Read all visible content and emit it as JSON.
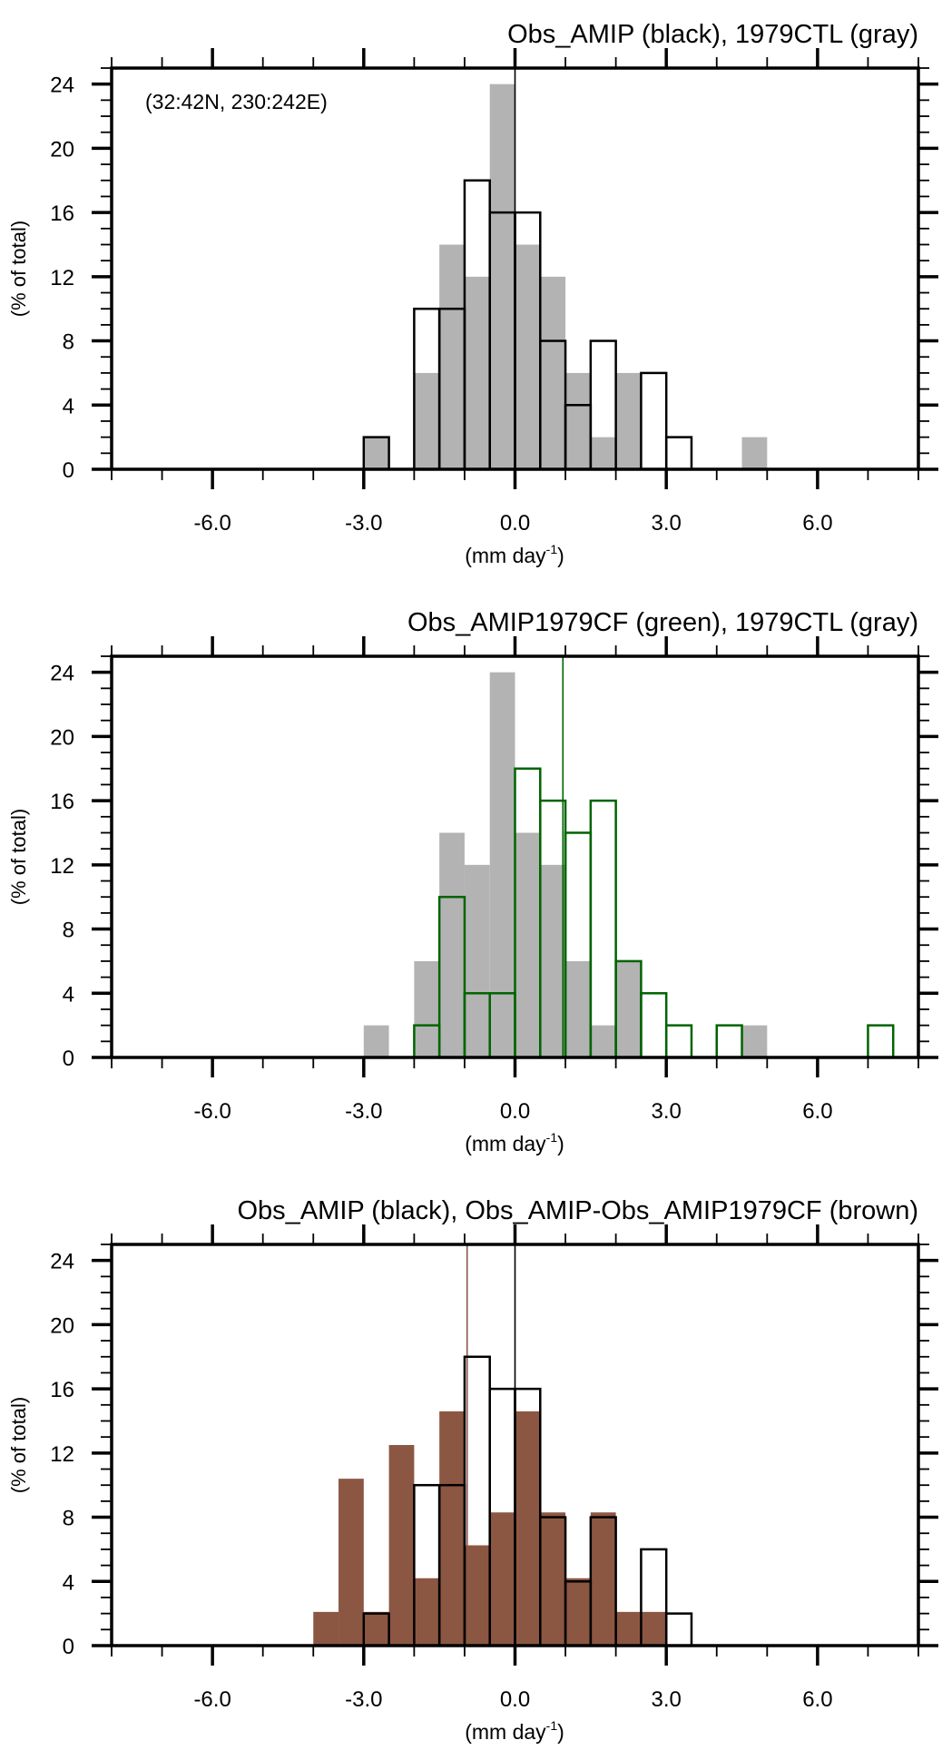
{
  "chart_data": [
    {
      "type": "bar",
      "title": "Obs_AMIP (black), 1979CTL (gray)",
      "annotation": "(32:42N, 230:242E)",
      "xlabel": "(mm day",
      "xlabel_sup": "-1",
      "xlabel_close": ")",
      "ylabel": "(% of total)",
      "xlim": [
        -8,
        8
      ],
      "ylim": [
        0,
        25
      ],
      "xticks": [
        -6,
        -3,
        0,
        3,
        6
      ],
      "xtick_labels": [
        "-6.0",
        "-3.0",
        "0.0",
        "3.0",
        "6.0"
      ],
      "yticks": [
        0,
        4,
        8,
        12,
        16,
        20,
        24
      ],
      "ytick_labels": [
        "0",
        "4",
        "8",
        "12",
        "16",
        "20",
        "24"
      ],
      "bin_width": 0.5,
      "series": [
        {
          "name": "1979CTL",
          "style": "filled",
          "color": "#b3b3b3",
          "bin_starts": [
            -3,
            -2,
            -1.5,
            -1,
            -0.5,
            0,
            0.5,
            1,
            1.5,
            2,
            4.5
          ],
          "values": [
            2,
            6,
            14,
            12,
            24,
            14,
            12,
            6,
            2,
            6,
            2
          ],
          "mean": null
        },
        {
          "name": "Obs_AMIP",
          "style": "outline",
          "color": "#000000",
          "bin_starts": [
            -3,
            -2,
            -1.5,
            -1,
            -0.5,
            0,
            0.5,
            1,
            1.5,
            2.5,
            3
          ],
          "values": [
            2,
            10,
            10,
            18,
            16,
            16,
            8,
            4,
            8,
            6,
            2
          ],
          "mean": 0.0
        }
      ]
    },
    {
      "type": "bar",
      "title": "Obs_AMIP1979CF (green), 1979CTL (gray)",
      "xlabel": "(mm day",
      "xlabel_sup": "-1",
      "xlabel_close": ")",
      "ylabel": "(% of total)",
      "xlim": [
        -8,
        8
      ],
      "ylim": [
        0,
        25
      ],
      "xticks": [
        -6,
        -3,
        0,
        3,
        6
      ],
      "xtick_labels": [
        "-6.0",
        "-3.0",
        "0.0",
        "3.0",
        "6.0"
      ],
      "yticks": [
        0,
        4,
        8,
        12,
        16,
        20,
        24
      ],
      "ytick_labels": [
        "0",
        "4",
        "8",
        "12",
        "16",
        "20",
        "24"
      ],
      "bin_width": 0.5,
      "series": [
        {
          "name": "1979CTL",
          "style": "filled",
          "color": "#b3b3b3",
          "bin_starts": [
            -3,
            -2,
            -1.5,
            -1,
            -0.5,
            0,
            0.5,
            1,
            1.5,
            2,
            4.5
          ],
          "values": [
            2,
            6,
            14,
            12,
            24,
            14,
            12,
            6,
            2,
            6,
            2
          ],
          "mean": null
        },
        {
          "name": "Obs_AMIP1979CF",
          "style": "outline",
          "color": "#006400",
          "bin_starts": [
            -2,
            -1.5,
            -1,
            -0.5,
            0,
            0.5,
            1,
            1.5,
            2,
            2.5,
            3,
            4,
            7
          ],
          "values": [
            2,
            10,
            4,
            4,
            18,
            16,
            14,
            16,
            6,
            4,
            2,
            2,
            2
          ],
          "mean": 0.95
        }
      ]
    },
    {
      "type": "bar",
      "title": "Obs_AMIP (black), Obs_AMIP-Obs_AMIP1979CF (brown)",
      "xlabel": "(mm day",
      "xlabel_sup": "-1",
      "xlabel_close": ")",
      "ylabel": "(% of total)",
      "xlim": [
        -8,
        8
      ],
      "ylim": [
        0,
        25
      ],
      "xticks": [
        -6,
        -3,
        0,
        3,
        6
      ],
      "xtick_labels": [
        "-6.0",
        "-3.0",
        "0.0",
        "3.0",
        "6.0"
      ],
      "yticks": [
        0,
        4,
        8,
        12,
        16,
        20,
        24
      ],
      "ytick_labels": [
        "0",
        "4",
        "8",
        "12",
        "16",
        "20",
        "24"
      ],
      "bin_width": 0.5,
      "series": [
        {
          "name": "Obs_AMIP-Obs_AMIP1979CF",
          "style": "filled",
          "color": "#8b5742",
          "bin_starts": [
            -4,
            -3.5,
            -3,
            -2.5,
            -2,
            -1.5,
            -1,
            -0.5,
            0,
            0.5,
            1,
            1.5,
            2,
            2.5
          ],
          "values": [
            2.1,
            10.4,
            2.1,
            12.5,
            4.2,
            14.6,
            6.25,
            8.3,
            14.6,
            8.3,
            4.2,
            8.3,
            2.1,
            2.1
          ],
          "mean": -0.95
        },
        {
          "name": "Obs_AMIP",
          "style": "outline",
          "color": "#000000",
          "bin_starts": [
            -3,
            -2,
            -1.5,
            -1,
            -0.5,
            0,
            0.5,
            1,
            1.5,
            2.5,
            3
          ],
          "values": [
            2,
            10,
            10,
            18,
            16,
            16,
            8,
            4,
            8,
            6,
            2
          ],
          "mean": 0.0
        }
      ]
    }
  ]
}
